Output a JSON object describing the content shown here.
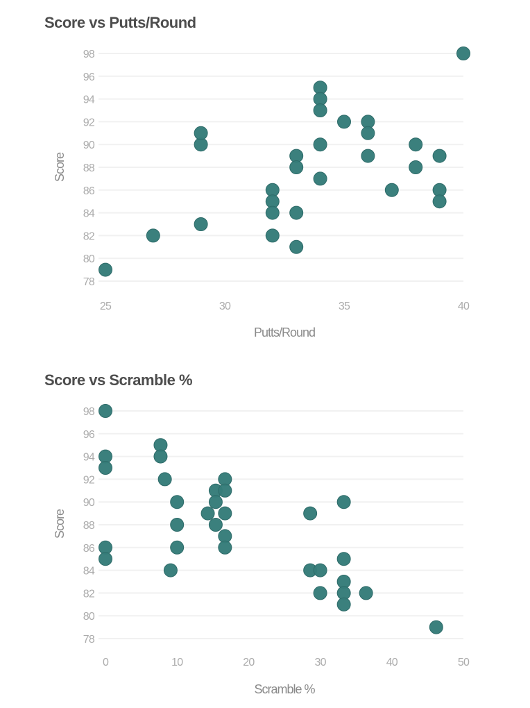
{
  "colors": {
    "point_fill": "#357c79",
    "point_stroke": "#2e6b69",
    "grid": "#f1f1f1"
  },
  "chart_data": [
    {
      "type": "scatter",
      "title": "Score vs Putts/Round",
      "xlabel": "Putts/Round",
      "ylabel": "Score",
      "xlim": [
        25,
        40
      ],
      "ylim": [
        78,
        98
      ],
      "xticks": [
        25,
        30,
        35,
        40
      ],
      "yticks": [
        78,
        80,
        82,
        84,
        86,
        88,
        90,
        92,
        94,
        96,
        98
      ],
      "grid": true,
      "legend": null,
      "points": [
        {
          "x": 25,
          "y": 79
        },
        {
          "x": 27,
          "y": 82
        },
        {
          "x": 29,
          "y": 83
        },
        {
          "x": 29,
          "y": 90
        },
        {
          "x": 29,
          "y": 91
        },
        {
          "x": 32,
          "y": 86
        },
        {
          "x": 32,
          "y": 85
        },
        {
          "x": 32,
          "y": 84
        },
        {
          "x": 32,
          "y": 82
        },
        {
          "x": 33,
          "y": 89
        },
        {
          "x": 33,
          "y": 88
        },
        {
          "x": 33,
          "y": 84
        },
        {
          "x": 33,
          "y": 81
        },
        {
          "x": 34,
          "y": 95
        },
        {
          "x": 34,
          "y": 94
        },
        {
          "x": 34,
          "y": 93
        },
        {
          "x": 34,
          "y": 90
        },
        {
          "x": 34,
          "y": 87
        },
        {
          "x": 35,
          "y": 92
        },
        {
          "x": 36,
          "y": 92
        },
        {
          "x": 36,
          "y": 91
        },
        {
          "x": 36,
          "y": 89
        },
        {
          "x": 37,
          "y": 86
        },
        {
          "x": 38,
          "y": 90
        },
        {
          "x": 38,
          "y": 88
        },
        {
          "x": 39,
          "y": 89
        },
        {
          "x": 39,
          "y": 86
        },
        {
          "x": 39,
          "y": 85
        },
        {
          "x": 40,
          "y": 98
        }
      ]
    },
    {
      "type": "scatter",
      "title": "Score vs Scramble %",
      "xlabel": "Scramble %",
      "ylabel": "Score",
      "xlim": [
        0,
        50
      ],
      "ylim": [
        78,
        98
      ],
      "xticks": [
        0,
        10,
        20,
        30,
        40,
        50
      ],
      "yticks": [
        78,
        80,
        82,
        84,
        86,
        88,
        90,
        92,
        94,
        96,
        98
      ],
      "grid": true,
      "legend": null,
      "points": [
        {
          "x": 0,
          "y": 98
        },
        {
          "x": 0,
          "y": 94
        },
        {
          "x": 0,
          "y": 93
        },
        {
          "x": 0,
          "y": 86
        },
        {
          "x": 0,
          "y": 85
        },
        {
          "x": 7.7,
          "y": 95
        },
        {
          "x": 7.7,
          "y": 94
        },
        {
          "x": 8.3,
          "y": 92
        },
        {
          "x": 9.1,
          "y": 84
        },
        {
          "x": 10.0,
          "y": 90
        },
        {
          "x": 10.0,
          "y": 88
        },
        {
          "x": 10.0,
          "y": 86
        },
        {
          "x": 14.3,
          "y": 89
        },
        {
          "x": 15.4,
          "y": 91
        },
        {
          "x": 15.4,
          "y": 90
        },
        {
          "x": 15.4,
          "y": 88
        },
        {
          "x": 16.7,
          "y": 92
        },
        {
          "x": 16.7,
          "y": 91
        },
        {
          "x": 16.7,
          "y": 89
        },
        {
          "x": 16.7,
          "y": 87
        },
        {
          "x": 16.7,
          "y": 86
        },
        {
          "x": 28.6,
          "y": 89
        },
        {
          "x": 28.6,
          "y": 84
        },
        {
          "x": 30.0,
          "y": 84
        },
        {
          "x": 30.0,
          "y": 82
        },
        {
          "x": 33.3,
          "y": 90
        },
        {
          "x": 33.3,
          "y": 85
        },
        {
          "x": 33.3,
          "y": 83
        },
        {
          "x": 33.3,
          "y": 82
        },
        {
          "x": 33.3,
          "y": 81
        },
        {
          "x": 36.4,
          "y": 82
        },
        {
          "x": 46.2,
          "y": 79
        }
      ]
    }
  ]
}
